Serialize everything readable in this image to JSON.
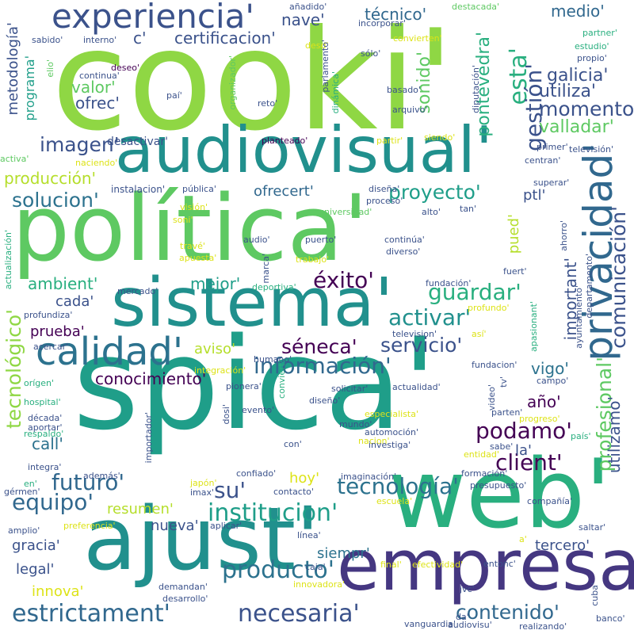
{
  "background": "#ffffff",
  "palette": {
    "dark_purple": "#440154",
    "indigo": "#453781",
    "blue": "#3b528b",
    "steel_blue": "#31688e",
    "teal_blue": "#2c728e",
    "teal": "#21908d",
    "sea_green": "#1f9e89",
    "green": "#29af7f",
    "light_green": "#5ec962",
    "lime": "#8fd744",
    "yellow_green": "#b5de2b",
    "yellow": "#dde318",
    "bright_yellow": "#fde725"
  },
  "words": [
    {
      "text": "cooki'",
      "color": "#8fd744"
    },
    {
      "text": "spica'",
      "color": "#1f9e89"
    },
    {
      "text": "política'",
      "color": "#5ec962"
    },
    {
      "text": "web'",
      "color": "#29af7f"
    },
    {
      "text": "ajust'",
      "color": "#21908d"
    },
    {
      "text": "empresa'",
      "color": "#453781"
    },
    {
      "text": "sistema'",
      "color": "#21908d"
    },
    {
      "text": "audiovisual'",
      "color": "#21908d"
    },
    {
      "text": "privacidad'",
      "color": "#31688e"
    },
    {
      "text": "calidad'",
      "color": "#2c728e"
    },
    {
      "text": "experiencia'",
      "color": "#3b528b"
    },
    {
      "text": "información'",
      "color": "#31688e"
    },
    {
      "text": "tecnología'",
      "color": "#2c728e"
    },
    {
      "text": "institucion'",
      "color": "#1f9e89"
    },
    {
      "text": "estrictament'",
      "color": "#31688e"
    },
    {
      "text": "necesaria'",
      "color": "#3b528b"
    },
    {
      "text": "producto'",
      "color": "#2c728e"
    },
    {
      "text": "contenido'",
      "color": "#31688e"
    },
    {
      "text": "servicio'",
      "color": "#3b528b"
    },
    {
      "text": "activar'",
      "color": "#21908d"
    },
    {
      "text": "guardar'",
      "color": "#29af7f"
    },
    {
      "text": "proyecto'",
      "color": "#1f9e89"
    },
    {
      "text": "comunicación'",
      "color": "#3b528b"
    },
    {
      "text": "profesional'",
      "color": "#5ec962"
    },
    {
      "text": "tecnológico'",
      "color": "#8fd744"
    },
    {
      "text": "futuro'",
      "color": "#31688e"
    },
    {
      "text": "equipo'",
      "color": "#31688e"
    },
    {
      "text": "client'",
      "color": "#440154"
    },
    {
      "text": "podamo'",
      "color": "#440154"
    },
    {
      "text": "éxito'",
      "color": "#440154"
    },
    {
      "text": "séneca'",
      "color": "#440154"
    },
    {
      "text": "su'",
      "color": "#3b528b"
    },
    {
      "text": "imagen'",
      "color": "#3b528b"
    },
    {
      "text": "solucion'",
      "color": "#2c728e"
    },
    {
      "text": "conocimiento'",
      "color": "#440154"
    },
    {
      "text": "esta'",
      "color": "#29af7f"
    },
    {
      "text": "gestión'",
      "color": "#3b528b"
    },
    {
      "text": "momento'",
      "color": "#3b528b"
    },
    {
      "text": "utiliza'",
      "color": "#3b528b"
    },
    {
      "text": "galicia'",
      "color": "#3b528b"
    },
    {
      "text": "valladar'",
      "color": "#5ec962"
    },
    {
      "text": "sonido'",
      "color": "#5ec962"
    },
    {
      "text": "pontevedra'",
      "color": "#29af7f"
    },
    {
      "text": "técnico'",
      "color": "#31688e"
    },
    {
      "text": "medio'",
      "color": "#31688e"
    },
    {
      "text": "nave'",
      "color": "#3b528b"
    },
    {
      "text": "certificacion'",
      "color": "#3b528b"
    },
    {
      "text": "c'",
      "color": "#3b528b"
    },
    {
      "text": "ofrec'",
      "color": "#3b528b"
    },
    {
      "text": "valor'",
      "color": "#5ec962"
    },
    {
      "text": "metodología'",
      "color": "#3b528b"
    },
    {
      "text": "programa'",
      "color": "#1f9e89"
    },
    {
      "text": "producción'",
      "color": "#b5de2b"
    },
    {
      "text": "ofrecert'",
      "color": "#31688e"
    },
    {
      "text": "mejor'",
      "color": "#1f9e89"
    },
    {
      "text": "ambient'",
      "color": "#29af7f"
    },
    {
      "text": "cada'",
      "color": "#3b528b"
    },
    {
      "text": "prueba'",
      "color": "#440154"
    },
    {
      "text": "aviso'",
      "color": "#b5de2b"
    },
    {
      "text": "important'",
      "color": "#3b528b"
    },
    {
      "text": "vigo'",
      "color": "#2c728e"
    },
    {
      "text": "año'",
      "color": "#440154"
    },
    {
      "text": "utilizamo'",
      "color": "#3b528b"
    },
    {
      "text": "pued'",
      "color": "#b5de2b"
    },
    {
      "text": "ptl'",
      "color": "#3b528b"
    },
    {
      "text": "la'",
      "color": "#3b528b"
    },
    {
      "text": "call'",
      "color": "#2c728e"
    },
    {
      "text": "resumen'",
      "color": "#b5de2b"
    },
    {
      "text": "hoy'",
      "color": "#dde318"
    },
    {
      "text": "nueva'",
      "color": "#3b528b"
    },
    {
      "text": "siempr'",
      "color": "#2c728e"
    },
    {
      "text": "gracia'",
      "color": "#3b528b"
    },
    {
      "text": "legal'",
      "color": "#3b528b"
    },
    {
      "text": "innova'",
      "color": "#dde318"
    },
    {
      "text": "tercero'",
      "color": "#3b528b"
    },
    {
      "text": "desactivar'",
      "color": "#3b528b"
    },
    {
      "text": "instalacion'",
      "color": "#3b528b"
    },
    {
      "text": "añadido'",
      "color": "#3b528b"
    },
    {
      "text": "incorporar'",
      "color": "#3b528b"
    },
    {
      "text": "convierten'",
      "color": "#dde318"
    },
    {
      "text": "destacada'",
      "color": "#5ec962"
    },
    {
      "text": "sabido'",
      "color": "#3b528b"
    },
    {
      "text": "interno'",
      "color": "#3b528b"
    },
    {
      "text": "desd'",
      "color": "#dde318"
    },
    {
      "text": "sólo'",
      "color": "#3b528b"
    },
    {
      "text": "partner'",
      "color": "#29af7f"
    },
    {
      "text": "estudio'",
      "color": "#29af7f"
    },
    {
      "text": "propio'",
      "color": "#3b528b"
    },
    {
      "text": "deseo'",
      "color": "#440154"
    },
    {
      "text": "continua'",
      "color": "#3b528b"
    },
    {
      "text": "elio'",
      "color": "#5ec962"
    },
    {
      "text": "paí'",
      "color": "#3b528b"
    },
    {
      "text": "organizador'",
      "color": "#5ec962"
    },
    {
      "text": "reto'",
      "color": "#3b528b"
    },
    {
      "text": "dinámica'",
      "color": "#29af7f"
    },
    {
      "text": "parlamento'",
      "color": "#3b528b"
    },
    {
      "text": "basado'",
      "color": "#3b528b"
    },
    {
      "text": "arquivo'",
      "color": "#3b528b"
    },
    {
      "text": "diputación'",
      "color": "#3b528b"
    },
    {
      "text": "planteado'",
      "color": "#440154"
    },
    {
      "text": "partir'",
      "color": "#dde318"
    },
    {
      "text": "siendo'",
      "color": "#dde318"
    },
    {
      "text": "activa'",
      "color": "#5ec962"
    },
    {
      "text": "naciendo'",
      "color": "#dde318"
    },
    {
      "text": "primer'",
      "color": "#3b528b"
    },
    {
      "text": "televisión'",
      "color": "#3b528b"
    },
    {
      "text": "centran'",
      "color": "#3b528b"
    },
    {
      "text": "superar'",
      "color": "#3b528b"
    },
    {
      "text": "pública'",
      "color": "#3b528b"
    },
    {
      "text": "diseña'",
      "color": "#3b528b"
    },
    {
      "text": "proceso'",
      "color": "#3b528b"
    },
    {
      "text": "tan'",
      "color": "#3b528b"
    },
    {
      "text": "visión'",
      "color": "#dde318"
    },
    {
      "text": "soni'",
      "color": "#dde318"
    },
    {
      "text": "universidad'",
      "color": "#5ec962"
    },
    {
      "text": "alto'",
      "color": "#3b528b"
    },
    {
      "text": "ahorro'",
      "color": "#3b528b"
    },
    {
      "text": "travé'",
      "color": "#dde318"
    },
    {
      "text": "apuesta'",
      "color": "#dde318"
    },
    {
      "text": "audio'",
      "color": "#3b528b"
    },
    {
      "text": "puerto'",
      "color": "#3b528b"
    },
    {
      "text": "continúa'",
      "color": "#3b528b"
    },
    {
      "text": "diverso'",
      "color": "#3b528b"
    },
    {
      "text": "trabajo'",
      "color": "#dde318"
    },
    {
      "text": "actualización'",
      "color": "#29af7f"
    },
    {
      "text": "marca'",
      "color": "#3b528b"
    },
    {
      "text": "deportiva'",
      "color": "#29af7f"
    },
    {
      "text": "mercado'",
      "color": "#3b528b"
    },
    {
      "text": "profundiza'",
      "color": "#3b528b"
    },
    {
      "text": "fuert'",
      "color": "#3b528b"
    },
    {
      "text": "fundación'",
      "color": "#3b528b"
    },
    {
      "text": "profundo'",
      "color": "#dde318"
    },
    {
      "text": "departamento'",
      "color": "#3b528b"
    },
    {
      "text": "ayuntamiento'",
      "color": "#3b528b"
    },
    {
      "text": "apasionant'",
      "color": "#29af7f"
    },
    {
      "text": "acercar'",
      "color": "#3b528b"
    },
    {
      "text": "television'",
      "color": "#3b528b"
    },
    {
      "text": "así'",
      "color": "#dde318"
    },
    {
      "text": "humano'",
      "color": "#3b528b"
    },
    {
      "text": "fundacion'",
      "color": "#3b528b"
    },
    {
      "text": "integración'",
      "color": "#dde318"
    },
    {
      "text": "orígen'",
      "color": "#29af7f"
    },
    {
      "text": "pionera'",
      "color": "#3b528b"
    },
    {
      "text": "actualidad'",
      "color": "#3b528b"
    },
    {
      "text": "solicitar'",
      "color": "#3b528b"
    },
    {
      "text": "video'",
      "color": "#3b528b"
    },
    {
      "text": "tv'",
      "color": "#3b528b"
    },
    {
      "text": "campo'",
      "color": "#3b528b"
    },
    {
      "text": "hospital'",
      "color": "#29af7f"
    },
    {
      "text": "conviert'",
      "color": "#29af7f"
    },
    {
      "text": "diseño'",
      "color": "#3b528b"
    },
    {
      "text": "evento'",
      "color": "#3b528b"
    },
    {
      "text": "década'",
      "color": "#3b528b"
    },
    {
      "text": "aportar'",
      "color": "#3b528b"
    },
    {
      "text": "especialista'",
      "color": "#dde318"
    },
    {
      "text": "mundo'",
      "color": "#3b528b"
    },
    {
      "text": "automoción'",
      "color": "#3b528b"
    },
    {
      "text": "progreso'",
      "color": "#dde318"
    },
    {
      "text": "parten'",
      "color": "#3b528b"
    },
    {
      "text": "respaldo'",
      "color": "#29af7f"
    },
    {
      "text": "integra'",
      "color": "#3b528b"
    },
    {
      "text": "importador'",
      "color": "#3b528b"
    },
    {
      "text": "dosi'",
      "color": "#3b528b"
    },
    {
      "text": "con'",
      "color": "#3b528b"
    },
    {
      "text": "nacion'",
      "color": "#dde318"
    },
    {
      "text": "investiga'",
      "color": "#3b528b"
    },
    {
      "text": "sabe'",
      "color": "#3b528b"
    },
    {
      "text": "país'",
      "color": "#29af7f"
    },
    {
      "text": "entidad'",
      "color": "#dde318"
    },
    {
      "text": "además'",
      "color": "#3b528b"
    },
    {
      "text": "confiado'",
      "color": "#3b528b"
    },
    {
      "text": "imaginación'",
      "color": "#3b528b"
    },
    {
      "text": "formación'",
      "color": "#3b528b"
    },
    {
      "text": "en'",
      "color": "#29af7f"
    },
    {
      "text": "gérmen'",
      "color": "#3b528b"
    },
    {
      "text": "japón'",
      "color": "#dde318"
    },
    {
      "text": "imax'",
      "color": "#3b528b"
    },
    {
      "text": "contacto'",
      "color": "#3b528b"
    },
    {
      "text": "escuela'",
      "color": "#dde318"
    },
    {
      "text": "presupuesto'",
      "color": "#3b528b"
    },
    {
      "text": "compañía'",
      "color": "#3b528b"
    },
    {
      "text": "amplio'",
      "color": "#3b528b"
    },
    {
      "text": "preferencia'",
      "color": "#dde318"
    },
    {
      "text": "aplicar'",
      "color": "#3b528b"
    },
    {
      "text": "saltar'",
      "color": "#3b528b"
    },
    {
      "text": "línea'",
      "color": "#3b528b"
    },
    {
      "text": "a'",
      "color": "#dde318"
    },
    {
      "text": "caja'",
      "color": "#3b528b"
    },
    {
      "text": "final'",
      "color": "#dde318"
    },
    {
      "text": "efectividad'",
      "color": "#dde318"
    },
    {
      "text": "entonc'",
      "color": "#3b528b"
    },
    {
      "text": "demandan'",
      "color": "#3b528b"
    },
    {
      "text": "desarrollo'",
      "color": "#3b528b"
    },
    {
      "text": "innovadora'",
      "color": "#dde318"
    },
    {
      "text": "jvc'",
      "color": "#3b528b"
    },
    {
      "text": "cuba'",
      "color": "#3b528b"
    },
    {
      "text": "vanguardia'",
      "color": "#3b528b"
    },
    {
      "text": "da'",
      "color": "#3b528b"
    },
    {
      "text": "audiovisu'",
      "color": "#3b528b"
    },
    {
      "text": "realizando'",
      "color": "#3b528b"
    },
    {
      "text": "banco'",
      "color": "#3b528b"
    }
  ]
}
